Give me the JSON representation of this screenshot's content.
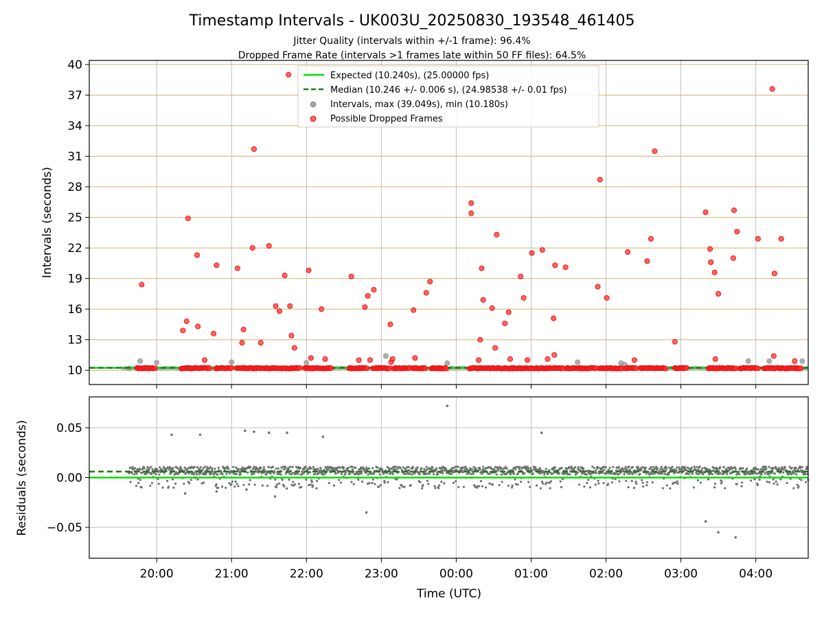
{
  "title": "Timestamp Intervals - UK003U_20250830_193548_461405",
  "subtitle_line1": "Jitter Quality (intervals within +/-1 frame): 96.4%",
  "subtitle_line2": "Dropped Frame Rate (intervals >1 frames late within 50 FF files): 64.5%",
  "colors": {
    "expected": "#00e000",
    "median": "#1a7a1a",
    "intervals": "#a0a0a0",
    "dropped": "#ff3030",
    "residuals": "#707070",
    "hgrid_top": "#d2b46e",
    "grid": "#bebebe"
  },
  "chart_data": [
    {
      "type": "scatter",
      "ylabel": "Intervals (seconds)",
      "xlabel": "",
      "x_ticks": [
        "20:00",
        "21:00",
        "22:00",
        "23:00",
        "00:00",
        "01:00",
        "02:00",
        "03:00",
        "04:00"
      ],
      "y_ticks": [
        "10",
        "13",
        "16",
        "19",
        "22",
        "25",
        "28",
        "31",
        "34",
        "37",
        "40"
      ],
      "ylim": [
        8.6,
        40.4
      ],
      "x_unit": "hours since 19:00 UTC",
      "xlim": [
        19.1,
        28.7
      ],
      "grid": "on",
      "legend_position": "top-center",
      "legend": [
        "Expected (10.240s), (25.00000 fps)",
        "Median (10.246 +/- 0.006 s), (24.98538 +/- 0.01 fps)",
        "Intervals, max (39.049s), min (10.180s)",
        "Possible Dropped Frames"
      ],
      "expected_interval": 10.24,
      "median_interval": 10.246,
      "dropped_segments": [
        [
          19.74,
          19.98
        ],
        [
          20.33,
          20.72
        ],
        [
          20.79,
          21.0
        ],
        [
          21.07,
          21.92
        ],
        [
          21.98,
          22.33
        ],
        [
          22.57,
          22.81
        ],
        [
          22.89,
          23.12
        ],
        [
          23.17,
          23.38
        ],
        [
          23.42,
          23.6
        ],
        [
          23.67,
          23.87
        ],
        [
          24.18,
          25.43
        ],
        [
          25.47,
          25.87
        ],
        [
          25.91,
          26.22
        ],
        [
          26.26,
          26.4
        ],
        [
          26.46,
          26.8
        ],
        [
          26.92,
          27.08
        ],
        [
          27.37,
          27.74
        ],
        [
          27.79,
          28.03
        ],
        [
          28.11,
          28.6
        ]
      ],
      "interval_points": [
        [
          19.63,
          10.18
        ],
        [
          19.78,
          10.9
        ],
        [
          20.0,
          10.75
        ],
        [
          21.0,
          10.8
        ],
        [
          22.0,
          10.75
        ],
        [
          23.06,
          11.4
        ],
        [
          23.88,
          10.7
        ],
        [
          25.62,
          10.8
        ],
        [
          26.2,
          10.7
        ],
        [
          26.25,
          10.55
        ],
        [
          27.9,
          10.9
        ],
        [
          28.18,
          10.9
        ],
        [
          28.62,
          10.9
        ]
      ],
      "dropped_points": [
        [
          19.8,
          18.4
        ],
        [
          20.35,
          13.9
        ],
        [
          20.4,
          14.8
        ],
        [
          20.42,
          24.9
        ],
        [
          20.54,
          21.3
        ],
        [
          20.55,
          14.3
        ],
        [
          20.64,
          11.0
        ],
        [
          20.76,
          13.6
        ],
        [
          20.8,
          20.3
        ],
        [
          21.08,
          20.0
        ],
        [
          21.14,
          12.7
        ],
        [
          21.16,
          14.0
        ],
        [
          21.28,
          22.0
        ],
        [
          21.3,
          31.7
        ],
        [
          21.39,
          12.7
        ],
        [
          21.5,
          22.2
        ],
        [
          21.59,
          16.3
        ],
        [
          21.64,
          15.8
        ],
        [
          21.71,
          19.3
        ],
        [
          21.76,
          39.0
        ],
        [
          21.78,
          16.3
        ],
        [
          21.8,
          13.4
        ],
        [
          21.84,
          12.2
        ],
        [
          22.03,
          19.8
        ],
        [
          22.06,
          11.2
        ],
        [
          22.2,
          16.0
        ],
        [
          22.25,
          11.1
        ],
        [
          22.6,
          19.2
        ],
        [
          22.7,
          11.0
        ],
        [
          22.78,
          16.2
        ],
        [
          22.82,
          17.3
        ],
        [
          22.85,
          11.0
        ],
        [
          22.9,
          17.9
        ],
        [
          23.12,
          14.5
        ],
        [
          23.13,
          10.8
        ],
        [
          23.15,
          11.1
        ],
        [
          23.43,
          15.9
        ],
        [
          23.45,
          11.2
        ],
        [
          23.6,
          17.6
        ],
        [
          23.65,
          18.7
        ],
        [
          24.2,
          26.4
        ],
        [
          24.2,
          25.4
        ],
        [
          24.3,
          11.0
        ],
        [
          24.32,
          13.0
        ],
        [
          24.34,
          20.0
        ],
        [
          24.36,
          16.9
        ],
        [
          24.48,
          16.1
        ],
        [
          24.52,
          12.2
        ],
        [
          24.54,
          23.3
        ],
        [
          24.65,
          14.6
        ],
        [
          24.7,
          15.7
        ],
        [
          24.72,
          11.1
        ],
        [
          24.86,
          19.2
        ],
        [
          24.9,
          17.1
        ],
        [
          24.95,
          11.0
        ],
        [
          25.01,
          21.5
        ],
        [
          25.15,
          21.8
        ],
        [
          25.22,
          11.1
        ],
        [
          25.3,
          15.1
        ],
        [
          25.31,
          11.5
        ],
        [
          25.32,
          20.3
        ],
        [
          25.46,
          20.1
        ],
        [
          25.89,
          18.2
        ],
        [
          25.92,
          28.7
        ],
        [
          26.01,
          17.1
        ],
        [
          26.29,
          21.6
        ],
        [
          26.38,
          11.0
        ],
        [
          26.55,
          20.7
        ],
        [
          26.6,
          22.9
        ],
        [
          26.65,
          31.5
        ],
        [
          26.92,
          12.8
        ],
        [
          27.33,
          25.5
        ],
        [
          27.39,
          21.9
        ],
        [
          27.4,
          20.6
        ],
        [
          27.45,
          19.6
        ],
        [
          27.46,
          11.1
        ],
        [
          27.5,
          17.5
        ],
        [
          27.71,
          25.7
        ],
        [
          27.7,
          21.0
        ],
        [
          27.75,
          23.6
        ],
        [
          28.03,
          22.9
        ],
        [
          28.22,
          37.6
        ],
        [
          28.24,
          11.4
        ],
        [
          28.25,
          19.5
        ],
        [
          28.34,
          22.9
        ],
        [
          28.52,
          10.9
        ]
      ]
    },
    {
      "type": "scatter",
      "ylabel": "Residuals (seconds)",
      "xlabel": "Time (UTC)",
      "x_ticks": [
        "20:00",
        "21:00",
        "22:00",
        "23:00",
        "00:00",
        "01:00",
        "02:00",
        "03:00",
        "04:00"
      ],
      "y_ticks": [
        "0.05",
        "0.00",
        "−0.05"
      ],
      "ylim": [
        -0.081,
        0.081
      ],
      "x_unit": "hours since 19:00 UTC",
      "xlim": [
        19.1,
        28.7
      ],
      "grid": "on",
      "expected_residual": 0.0,
      "median_residual": 0.006,
      "outliers": [
        [
          20.2,
          0.043
        ],
        [
          20.58,
          0.043
        ],
        [
          21.18,
          0.047
        ],
        [
          21.3,
          0.046
        ],
        [
          21.5,
          0.045
        ],
        [
          21.74,
          0.045
        ],
        [
          22.22,
          0.041
        ],
        [
          23.88,
          0.072
        ],
        [
          25.14,
          0.045
        ],
        [
          22.8,
          -0.035
        ],
        [
          27.33,
          -0.044
        ],
        [
          27.5,
          -0.055
        ],
        [
          27.73,
          -0.06
        ],
        [
          20.38,
          -0.016
        ],
        [
          21.58,
          -0.019
        ],
        [
          20.8,
          -0.014
        ],
        [
          21.2,
          -0.012
        ]
      ],
      "band": [
        [
          19.62,
          28.7
        ]
      ],
      "band_center": 0.003,
      "band_spread": 0.008
    }
  ]
}
